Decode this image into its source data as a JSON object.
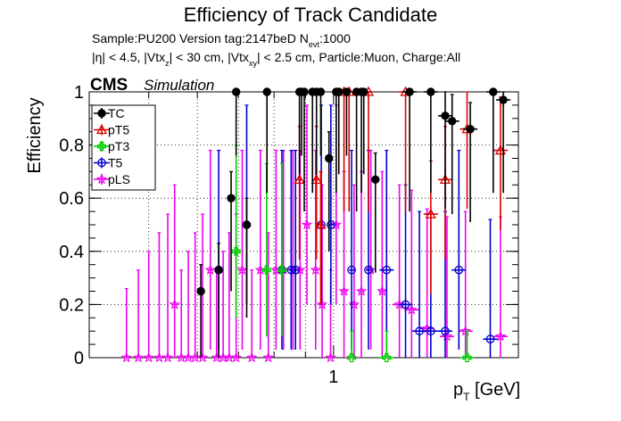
{
  "chart_data": {
    "type": "scatter",
    "title": "Efficiency of Track Candidate",
    "subtitle_sample": "Sample:PU200   Version tag:2147beD  N",
    "subtitle_nevt_sub": "evt",
    "subtitle_nevt_val": ":1000",
    "cuts": {
      "p1": "|η| < 4.5, |Vtx",
      "s1": "z",
      "p2": "| < 30 cm, |Vtx",
      "s2": "xy",
      "p3": "| < 2.5 cm, Particle:Muon, Charge:All"
    },
    "cms_label": "CMS",
    "sim_label": "Simulation",
    "ylabel": "Efficiency",
    "xlabel_p": "p",
    "xlabel_sub": "T",
    "xlabel_unit": " [GeV]",
    "x_scale": "log",
    "xlim": [
      0.4,
      2.0
    ],
    "ylim": [
      0,
      1.0
    ],
    "yticks": [
      "0",
      "0.2",
      "0.4",
      "0.6",
      "0.8",
      "1"
    ],
    "xticks": [
      "1"
    ],
    "grid": true,
    "legend_position": "top-left",
    "series": [
      {
        "name": "TC",
        "color": "#000000",
        "marker": "filled-circle",
        "x": [
          0.608,
          0.65,
          0.681,
          0.694,
          0.722,
          0.779,
          0.88,
          0.887,
          0.896,
          0.924,
          0.938,
          0.953,
          0.983,
          1.01,
          1.02,
          1.05,
          1.09,
          1.11,
          1.12,
          1.17,
          1.33,
          1.44,
          1.52,
          1.56,
          1.67,
          1.82,
          1.89
        ],
        "y": [
          0.25,
          0.33,
          0.6,
          1.0,
          0.5,
          1.0,
          1.0,
          1.0,
          1.0,
          1.0,
          1.0,
          1.0,
          0.75,
          1.0,
          1.0,
          1.0,
          1.0,
          1.0,
          1.0,
          0.67,
          1.0,
          1.0,
          0.91,
          0.89,
          0.86,
          1.0,
          0.97
        ]
      },
      {
        "name": "pT5",
        "color": "#dd0000",
        "marker": "open-triangle",
        "x": [
          0.88,
          0.938,
          0.953,
          1.04,
          1.06,
          1.14,
          1.31,
          1.44,
          1.52,
          1.65,
          1.87
        ],
        "y": [
          0.67,
          0.67,
          0.5,
          1.0,
          1.0,
          1.0,
          1.0,
          0.54,
          0.67,
          0.86,
          0.78
        ]
      },
      {
        "name": "pT3",
        "color": "#00cc00",
        "marker": "open-cross",
        "x": [
          0.694,
          0.778,
          0.824,
          1.07,
          1.22,
          1.65
        ],
        "y": [
          0.4,
          0.33,
          0.33,
          0.0,
          0.0,
          0.0
        ]
      },
      {
        "name": "T5",
        "color": "#0000cc",
        "marker": "open-circle",
        "x": [
          0.65,
          0.722,
          0.824,
          0.853,
          0.867,
          0.955,
          0.99,
          1.07,
          1.14,
          1.22,
          1.31,
          1.38,
          1.44,
          1.52,
          1.6,
          1.8
        ],
        "y": [
          0.33,
          0.5,
          0.33,
          0.33,
          0.33,
          0.5,
          0.5,
          0.33,
          0.33,
          0.33,
          0.2,
          0.1,
          0.1,
          0.1,
          0.33,
          0.07
        ]
      },
      {
        "name": "pLS",
        "color": "#ee00ee",
        "marker": "open-star",
        "x": [
          0.46,
          0.481,
          0.5,
          0.52,
          0.537,
          0.551,
          0.565,
          0.58,
          0.595,
          0.612,
          0.63,
          0.645,
          0.661,
          0.676,
          0.694,
          0.71,
          0.736,
          0.76,
          0.783,
          0.806,
          0.829,
          0.859,
          0.882,
          0.905,
          0.935,
          0.958,
          0.989,
          1.01,
          1.04,
          1.08,
          1.11,
          1.15,
          1.2,
          1.28,
          1.34,
          1.42,
          1.53,
          1.64,
          1.87
        ],
        "y": [
          0.0,
          0.0,
          0.0,
          0.0,
          0.0,
          0.2,
          0.0,
          0.0,
          0.0,
          0.0,
          0.33,
          0.0,
          0.0,
          0.0,
          0.0,
          0.33,
          0.0,
          0.33,
          0.0,
          0.33,
          0.33,
          0.33,
          0.33,
          0.5,
          0.33,
          0.2,
          0.0,
          0.5,
          0.25,
          0.2,
          0.25,
          0.33,
          0.25,
          0.2,
          0.18,
          0.11,
          0.08,
          0.1,
          0.08
        ]
      }
    ]
  }
}
